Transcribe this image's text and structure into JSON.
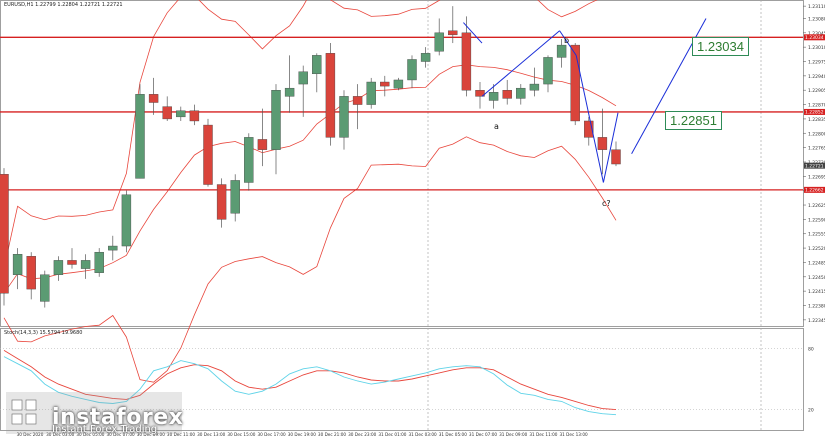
{
  "header": {
    "instrument_info": "EURUSD,H1  1.22799 1.22804 1.22721 1.22721",
    "oscillator_info": "Stoch(14,3,3) 15.5794 19.9680"
  },
  "levels": {
    "upper_label": "1.23034",
    "lower_label": "1.22851"
  },
  "wave_labels": {
    "a": "a",
    "b": "b",
    "c": "c?"
  },
  "logo": {
    "name": "instaforex",
    "tagline": "Instant Forex Trading"
  },
  "colors": {
    "bull": "#5b9b73",
    "bear": "#d9443b",
    "band": "#e8463c",
    "level": "#d62020",
    "projection": "#1a2ed8",
    "stoch_main": "#5fd3e8",
    "stoch_signal": "#e8463c",
    "grid": "#c8c8c8"
  },
  "chart_data": {
    "type": "candlestick",
    "price_axis_ticks": [
      "1.23110",
      "1.23080",
      "1.23045",
      "1.23010",
      "1.22975",
      "1.22940",
      "1.22905",
      "1.22870",
      "1.22835",
      "1.22800",
      "1.22765",
      "1.22730",
      "1.22695",
      "1.22660",
      "1.22625",
      "1.22590",
      "1.22555",
      "1.22520",
      "1.22485",
      "1.22450",
      "1.22415",
      "1.22380",
      "1.22345"
    ],
    "price_markers": [
      "1.23034",
      "1.22852",
      "1.22721",
      "1.22662"
    ],
    "oscillator_ticks": [
      "80",
      "20"
    ],
    "time_axis_ticks": [
      "30 Dec 2020",
      "30 Dec 03:00",
      "30 Dec 05:00",
      "30 Dec 07:00",
      "30 Dec 09:00",
      "30 Dec 11:00",
      "30 Dec 13:00",
      "30 Dec 15:00",
      "30 Dec 17:00",
      "30 Dec 19:00",
      "30 Dec 21:00",
      "30 Dec 23:00",
      "31 Dec 01:00",
      "31 Dec 03:00",
      "31 Dec 05:00",
      "31 Dec 07:00",
      "31 Dec 09:00",
      "31 Dec 11:00",
      "31 Dec 13:00"
    ],
    "ohlc": [
      [
        1.227,
        1.22715,
        1.2238,
        1.2241
      ],
      [
        1.22455,
        1.2252,
        1.2242,
        1.22505
      ],
      [
        1.225,
        1.2251,
        1.22395,
        1.2242
      ],
      [
        1.2239,
        1.22465,
        1.22375,
        1.22455
      ],
      [
        1.22455,
        1.225,
        1.2244,
        1.2249
      ],
      [
        1.2249,
        1.2252,
        1.2247,
        1.2248
      ],
      [
        1.2247,
        1.22505,
        1.22445,
        1.2249
      ],
      [
        1.2246,
        1.2252,
        1.2245,
        1.2251
      ],
      [
        1.22515,
        1.2255,
        1.2249,
        1.22525
      ],
      [
        1.22525,
        1.2266,
        1.2251,
        1.2265
      ],
      [
        1.2269,
        1.2292,
        1.2269,
        1.22895
      ],
      [
        1.22895,
        1.22935,
        1.22845,
        1.22875
      ],
      [
        1.22865,
        1.2289,
        1.2283,
        1.22835
      ],
      [
        1.2284,
        1.22865,
        1.2283,
        1.22855
      ],
      [
        1.22855,
        1.2287,
        1.2282,
        1.2283
      ],
      [
        1.2282,
        1.22835,
        1.2267,
        1.22675
      ],
      [
        1.22675,
        1.2269,
        1.2257,
        1.2259
      ],
      [
        1.22605,
        1.227,
        1.22585,
        1.22685
      ],
      [
        1.2268,
        1.228,
        1.2266,
        1.2279
      ],
      [
        1.22785,
        1.2286,
        1.2272,
        1.2276
      ],
      [
        1.2276,
        1.2292,
        1.227,
        1.22905
      ],
      [
        1.2289,
        1.2299,
        1.2285,
        1.2291
      ],
      [
        1.2292,
        1.22965,
        1.2284,
        1.2295
      ],
      [
        1.22945,
        1.22995,
        1.229,
        1.2299
      ],
      [
        1.22995,
        1.2302,
        1.2277,
        1.2279
      ],
      [
        1.2279,
        1.22905,
        1.2276,
        1.2289
      ],
      [
        1.2289,
        1.2292,
        1.2281,
        1.2287
      ],
      [
        1.2287,
        1.22935,
        1.2286,
        1.22925
      ],
      [
        1.22925,
        1.2294,
        1.2289,
        1.22915
      ],
      [
        1.2291,
        1.22935,
        1.22905,
        1.2293
      ],
      [
        1.2293,
        1.2299,
        1.2291,
        1.2298
      ],
      [
        1.22975,
        1.2301,
        1.2296,
        1.22995
      ],
      [
        1.23,
        1.2308,
        1.2299,
        1.23045
      ],
      [
        1.2305,
        1.2311,
        1.2302,
        1.2304
      ],
      [
        1.23045,
        1.23085,
        1.2289,
        1.22905
      ],
      [
        1.22905,
        1.22925,
        1.2286,
        1.2289
      ],
      [
        1.2288,
        1.2292,
        1.2286,
        1.229
      ],
      [
        1.22905,
        1.2293,
        1.2287,
        1.22885
      ],
      [
        1.22885,
        1.2292,
        1.2287,
        1.2291
      ],
      [
        1.22905,
        1.2296,
        1.2289,
        1.2292
      ],
      [
        1.2292,
        1.2299,
        1.229,
        1.22985
      ],
      [
        1.22985,
        1.2303,
        1.2296,
        1.23015
      ],
      [
        1.23015,
        1.2302,
        1.2282,
        1.2283
      ],
      [
        1.2283,
        1.2284,
        1.2277,
        1.2279
      ],
      [
        1.2279,
        1.2286,
        1.227,
        1.2276
      ],
      [
        1.2276,
        1.2278,
        1.2272,
        1.22725
      ]
    ],
    "stochastic": {
      "main": [
        72,
        65,
        58,
        45,
        37,
        33,
        30,
        27,
        26,
        28,
        40,
        58,
        62,
        68,
        65,
        60,
        48,
        38,
        35,
        38,
        45,
        55,
        60,
        62,
        58,
        52,
        48,
        45,
        47,
        50,
        53,
        56,
        60,
        62,
        63,
        62,
        55,
        44,
        36,
        34,
        30,
        28,
        22,
        18,
        16,
        15
      ],
      "signal": [
        78,
        70,
        62,
        52,
        45,
        40,
        35,
        33,
        31,
        30,
        34,
        45,
        55,
        61,
        64,
        63,
        58,
        48,
        42,
        40,
        42,
        48,
        54,
        58,
        58,
        56,
        52,
        49,
        48,
        48,
        50,
        53,
        56,
        59,
        61,
        61,
        59,
        52,
        45,
        40,
        35,
        32,
        28,
        24,
        21,
        20
      ]
    }
  }
}
